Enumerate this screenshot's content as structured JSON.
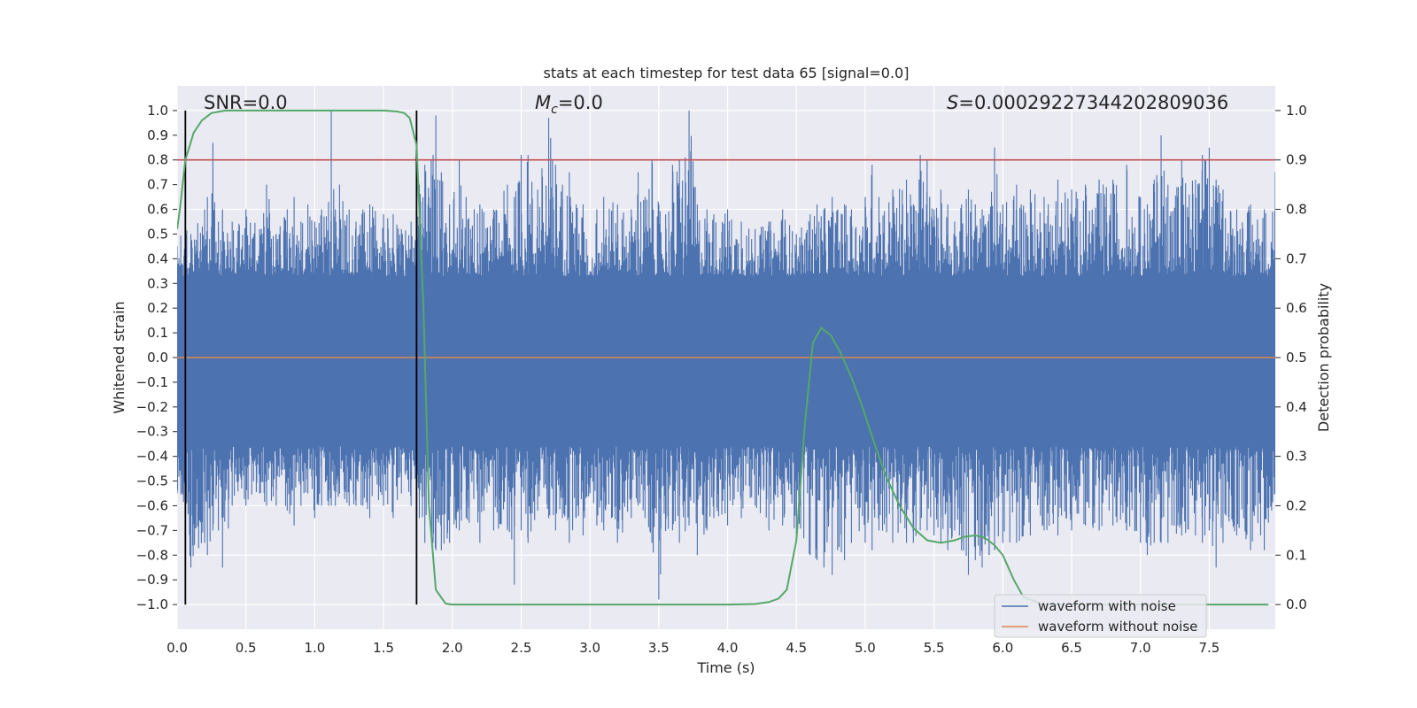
{
  "chart_data": {
    "type": "line",
    "title": "stats at each timestep for test data 65 [signal=0.0]",
    "xlabel": "Time (s)",
    "ylabel": "Whitened strain",
    "y2label": "Detection probability",
    "xlim": [
      0.0,
      7.98
    ],
    "ylim": [
      -1.1,
      1.1
    ],
    "y2lim": [
      -0.05,
      1.05
    ],
    "grid": true,
    "xticks": [
      "0.0",
      "0.5",
      "1.0",
      "1.5",
      "2.0",
      "2.5",
      "3.0",
      "3.5",
      "4.0",
      "4.5",
      "5.0",
      "5.5",
      "6.0",
      "6.5",
      "7.0",
      "7.5"
    ],
    "xtick_values": [
      0.0,
      0.5,
      1.0,
      1.5,
      2.0,
      2.5,
      3.0,
      3.5,
      4.0,
      4.5,
      5.0,
      5.5,
      6.0,
      6.5,
      7.0,
      7.5
    ],
    "yticks": [
      "1.0",
      "0.9",
      "0.8",
      "0.7",
      "0.6",
      "0.5",
      "0.4",
      "0.3",
      "0.2",
      "0.1",
      "0.0",
      "−0.1",
      "−0.2",
      "−0.3",
      "−0.4",
      "−0.5",
      "−0.6",
      "−0.7",
      "−0.8",
      "−0.9",
      "−1.0"
    ],
    "ytick_values": [
      1.0,
      0.9,
      0.8,
      0.7,
      0.6,
      0.5,
      0.4,
      0.3,
      0.2,
      0.1,
      0.0,
      -0.1,
      -0.2,
      -0.3,
      -0.4,
      -0.5,
      -0.6,
      -0.7,
      -0.8,
      -0.9,
      -1.0
    ],
    "y2ticks": [
      "1.0",
      "0.9",
      "0.8",
      "0.7",
      "0.6",
      "0.5",
      "0.4",
      "0.3",
      "0.2",
      "0.1",
      "0.0"
    ],
    "y2tick_values": [
      1.0,
      0.9,
      0.8,
      0.7,
      0.6,
      0.5,
      0.4,
      0.3,
      0.2,
      0.1,
      0.0
    ],
    "annotations": {
      "snr": "SNR=0.0",
      "mc_symbol": "M",
      "mc_sub": "c",
      "mc_value": "=0.0",
      "s_symbol": "S",
      "s_value": "=0.00029227344202809036"
    },
    "threshold": {
      "value": 0.9,
      "color": "#c44e52"
    },
    "vertical_markers": [
      0.06,
      1.74
    ],
    "series": [
      {
        "name": "waveform with noise",
        "color": "#4c72b0",
        "envelope_peaks": [
          [
            0.0,
            0.45,
            -0.55
          ],
          [
            0.06,
            0.55,
            -0.65
          ],
          [
            0.1,
            0.5,
            -0.85
          ],
          [
            0.2,
            0.6,
            -0.75
          ],
          [
            0.22,
            0.65,
            -0.8
          ],
          [
            0.26,
            0.87,
            -0.7
          ],
          [
            0.3,
            0.55,
            -0.7
          ],
          [
            0.33,
            0.6,
            -0.85
          ],
          [
            0.4,
            0.55,
            -0.6
          ],
          [
            0.5,
            0.6,
            -0.6
          ],
          [
            0.6,
            0.52,
            -0.55
          ],
          [
            0.65,
            0.7,
            -0.6
          ],
          [
            0.72,
            0.5,
            -0.6
          ],
          [
            0.8,
            0.6,
            -0.62
          ],
          [
            0.85,
            0.65,
            -0.68
          ],
          [
            0.9,
            0.55,
            -0.6
          ],
          [
            0.95,
            0.62,
            -0.55
          ],
          [
            1.0,
            0.55,
            -0.65
          ],
          [
            1.05,
            0.6,
            -0.6
          ],
          [
            1.1,
            0.63,
            -0.6
          ],
          [
            1.12,
            1.0,
            -0.6
          ],
          [
            1.15,
            0.6,
            -0.6
          ],
          [
            1.18,
            0.7,
            -0.55
          ],
          [
            1.25,
            0.6,
            -0.6
          ],
          [
            1.3,
            0.55,
            -0.6
          ],
          [
            1.35,
            0.6,
            -0.6
          ],
          [
            1.4,
            0.62,
            -0.65
          ],
          [
            1.5,
            0.58,
            -0.6
          ],
          [
            1.57,
            0.58,
            -0.65
          ],
          [
            1.63,
            0.52,
            -0.55
          ],
          [
            1.7,
            0.55,
            -0.6
          ],
          [
            1.76,
            0.7,
            -0.65
          ],
          [
            1.8,
            0.78,
            -0.75
          ],
          [
            1.86,
            0.82,
            -0.75
          ],
          [
            1.88,
            0.98,
            -0.78
          ],
          [
            1.92,
            0.75,
            -0.78
          ],
          [
            1.98,
            0.62,
            -0.75
          ],
          [
            2.05,
            0.8,
            -0.7
          ],
          [
            2.1,
            0.65,
            -0.65
          ],
          [
            2.2,
            0.62,
            -0.75
          ],
          [
            2.3,
            0.6,
            -0.7
          ],
          [
            2.4,
            0.7,
            -0.7
          ],
          [
            2.45,
            0.65,
            -0.92
          ],
          [
            2.5,
            0.82,
            -0.7
          ],
          [
            2.55,
            0.82,
            -0.75
          ],
          [
            2.62,
            0.68,
            -0.62
          ],
          [
            2.7,
            0.97,
            -0.65
          ],
          [
            2.75,
            0.78,
            -0.7
          ],
          [
            2.8,
            0.7,
            -0.65
          ],
          [
            2.85,
            0.75,
            -0.75
          ],
          [
            2.9,
            0.62,
            -0.65
          ],
          [
            2.95,
            0.62,
            -0.72
          ],
          [
            3.0,
            0.35,
            -0.55
          ],
          [
            3.05,
            0.6,
            -0.68
          ],
          [
            3.1,
            0.65,
            -0.7
          ],
          [
            3.2,
            0.62,
            -0.75
          ],
          [
            3.3,
            0.6,
            -0.65
          ],
          [
            3.35,
            0.75,
            -0.6
          ],
          [
            3.4,
            0.65,
            -0.65
          ],
          [
            3.45,
            0.8,
            -0.75
          ],
          [
            3.5,
            0.62,
            -0.98
          ],
          [
            3.55,
            0.58,
            -0.7
          ],
          [
            3.6,
            0.78,
            -0.7
          ],
          [
            3.65,
            0.8,
            -0.75
          ],
          [
            3.72,
            1.0,
            -0.68
          ],
          [
            3.78,
            0.62,
            -0.8
          ],
          [
            3.85,
            0.6,
            -0.7
          ],
          [
            3.9,
            0.58,
            -0.65
          ],
          [
            4.0,
            0.6,
            -0.68
          ],
          [
            4.1,
            0.55,
            -0.65
          ],
          [
            4.2,
            0.52,
            -0.6
          ],
          [
            4.3,
            0.55,
            -0.7
          ],
          [
            4.4,
            0.6,
            -0.68
          ],
          [
            4.5,
            0.5,
            -0.72
          ],
          [
            4.6,
            0.58,
            -0.8
          ],
          [
            4.65,
            0.62,
            -0.82
          ],
          [
            4.7,
            0.6,
            -0.85
          ],
          [
            4.76,
            0.65,
            -0.88
          ],
          [
            4.8,
            0.6,
            -0.78
          ],
          [
            4.85,
            0.62,
            -0.82
          ],
          [
            4.9,
            0.6,
            -0.75
          ],
          [
            5.0,
            0.65,
            -0.75
          ],
          [
            5.05,
            0.78,
            -0.78
          ],
          [
            5.1,
            0.65,
            -0.7
          ],
          [
            5.2,
            0.68,
            -0.75
          ],
          [
            5.3,
            0.72,
            -0.75
          ],
          [
            5.35,
            0.62,
            -0.75
          ],
          [
            5.4,
            0.82,
            -0.7
          ],
          [
            5.45,
            0.8,
            -0.7
          ],
          [
            5.5,
            0.6,
            -0.72
          ],
          [
            5.55,
            0.68,
            -0.75
          ],
          [
            5.6,
            0.62,
            -0.78
          ],
          [
            5.65,
            0.55,
            -0.7
          ],
          [
            5.7,
            0.62,
            -0.78
          ],
          [
            5.75,
            0.68,
            -0.88
          ],
          [
            5.8,
            0.62,
            -0.82
          ],
          [
            5.85,
            0.6,
            -0.85
          ],
          [
            5.9,
            0.58,
            -0.8
          ],
          [
            5.94,
            0.85,
            -0.78
          ],
          [
            6.0,
            0.62,
            -0.75
          ],
          [
            6.1,
            0.7,
            -0.75
          ],
          [
            6.2,
            0.68,
            -0.72
          ],
          [
            6.3,
            0.65,
            -0.7
          ],
          [
            6.4,
            0.72,
            -0.72
          ],
          [
            6.5,
            0.68,
            -0.7
          ],
          [
            6.6,
            0.7,
            -0.68
          ],
          [
            6.7,
            0.72,
            -0.7
          ],
          [
            6.8,
            0.72,
            -0.68
          ],
          [
            6.9,
            0.78,
            -0.7
          ],
          [
            7.0,
            0.65,
            -0.75
          ],
          [
            7.05,
            0.62,
            -0.8
          ],
          [
            7.1,
            0.72,
            -0.75
          ],
          [
            7.15,
            0.9,
            -0.75
          ],
          [
            7.2,
            0.7,
            -0.75
          ],
          [
            7.3,
            0.8,
            -0.72
          ],
          [
            7.4,
            0.72,
            -0.72
          ],
          [
            7.45,
            0.82,
            -0.75
          ],
          [
            7.5,
            0.85,
            -0.7
          ],
          [
            7.55,
            0.72,
            -0.85
          ],
          [
            7.6,
            0.68,
            -0.75
          ],
          [
            7.7,
            0.6,
            -0.72
          ],
          [
            7.8,
            0.62,
            -0.78
          ],
          [
            7.9,
            0.6,
            -0.78
          ],
          [
            7.98,
            0.75,
            -0.55
          ]
        ]
      },
      {
        "name": "waveform without noise",
        "color": "#dd8452",
        "x": [
          0.0,
          7.98
        ],
        "y": [
          0.0,
          0.0
        ]
      },
      {
        "name": "detection probability",
        "color": "#55a868",
        "axis": "right",
        "x": [
          0.0,
          0.02,
          0.06,
          0.12,
          0.18,
          0.25,
          0.35,
          0.5,
          1.0,
          1.5,
          1.6,
          1.65,
          1.69,
          1.74,
          1.79,
          1.83,
          1.88,
          1.95,
          2.0,
          3.0,
          4.0,
          4.2,
          4.3,
          4.37,
          4.43,
          4.5,
          4.56,
          4.62,
          4.68,
          4.75,
          4.82,
          4.9,
          4.98,
          5.05,
          5.15,
          5.25,
          5.35,
          5.45,
          5.55,
          5.65,
          5.72,
          5.8,
          5.87,
          5.94,
          6.0,
          6.08,
          6.15,
          6.3,
          6.5,
          7.0,
          7.5,
          7.93
        ],
        "y": [
          0.76,
          0.8,
          0.9,
          0.955,
          0.98,
          0.995,
          1.0,
          1.0,
          1.0,
          1.0,
          0.998,
          0.995,
          0.985,
          0.93,
          0.6,
          0.2,
          0.03,
          0.002,
          0.0,
          0.0,
          0.0,
          0.001,
          0.005,
          0.012,
          0.03,
          0.13,
          0.36,
          0.53,
          0.56,
          0.545,
          0.51,
          0.46,
          0.4,
          0.34,
          0.26,
          0.2,
          0.155,
          0.13,
          0.125,
          0.13,
          0.137,
          0.14,
          0.135,
          0.12,
          0.1,
          0.05,
          0.015,
          0.0,
          0.0,
          0.0,
          0.0,
          0.0
        ]
      }
    ],
    "legend": [
      "waveform with noise",
      "waveform without noise"
    ],
    "legend_position": "lower-right"
  }
}
